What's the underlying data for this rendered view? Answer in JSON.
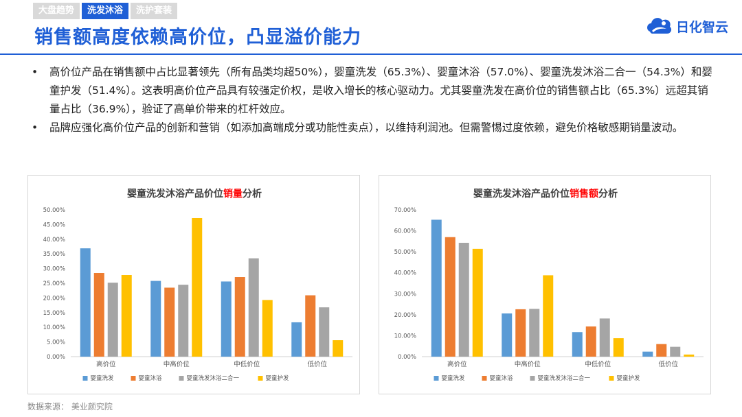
{
  "header": {
    "tabs": [
      "大盘趋势",
      "洗发沐浴",
      "洗护套装"
    ],
    "active_tab": 1,
    "title": "销售额高度依赖高价位，凸显溢价能力",
    "logo_text": "日化智云"
  },
  "bullets": [
    "高价位产品在销售额中占比显著领先（所有品类均超50%），婴童洗发（65.3%）、婴童沐浴（57.0%）、婴童洗发沐浴二合一（54.3%）和婴童护发（51.4%）。这表明高价位产品具有较强定价权，是收入增长的核心驱动力。尤其婴童洗发在高价位的销售额占比（65.3%）远超其销量占比（36.9%），验证了高单价带来的杠杆效应。",
    "品牌应强化高价位产品的创新和营销（如添加高端成分或功能性卖点），以维持利润池。但需警惕过度依赖，避免价格敏感期销量波动。"
  ],
  "source": "数据来源：  美业颜究院",
  "colors": {
    "brand": "#1f5fd6",
    "highlight": "#ff0000",
    "series": [
      "#5b9bd5",
      "#ed7d31",
      "#a5a5a5",
      "#ffc000"
    ]
  },
  "chart_data": [
    {
      "type": "bar",
      "title_prefix": "婴童洗发沐浴产品价位",
      "title_highlight": "销量",
      "title_suffix": "分析",
      "categories": [
        "高价位",
        "中高价位",
        "中低价位",
        "低价位"
      ],
      "series": [
        {
          "name": "婴童洗发",
          "values": [
            36.9,
            25.8,
            25.6,
            11.7
          ]
        },
        {
          "name": "婴童沐浴",
          "values": [
            28.5,
            23.5,
            27.1,
            20.9
          ]
        },
        {
          "name": "婴童洗发沐浴二合一",
          "values": [
            25.2,
            24.5,
            33.5,
            16.8
          ]
        },
        {
          "name": "婴童护发",
          "values": [
            27.8,
            47.2,
            19.3,
            5.6
          ]
        }
      ],
      "ylim": [
        0,
        50
      ],
      "yticks": [
        "0.00%",
        "5.00%",
        "10.00%",
        "15.00%",
        "20.00%",
        "25.00%",
        "30.00%",
        "35.00%",
        "40.00%",
        "45.00%",
        "50.00%"
      ],
      "grid": false,
      "legend": "bottom"
    },
    {
      "type": "bar",
      "title_prefix": "婴童洗发沐浴产品价位",
      "title_highlight": "销售额",
      "title_suffix": "分析",
      "categories": [
        "高价位",
        "中高价位",
        "中低价位",
        "低价位"
      ],
      "series": [
        {
          "name": "婴童洗发",
          "values": [
            65.3,
            20.6,
            11.7,
            2.4
          ]
        },
        {
          "name": "婴童沐浴",
          "values": [
            57.0,
            22.6,
            14.4,
            6.0
          ]
        },
        {
          "name": "婴童洗发沐浴二合一",
          "values": [
            54.3,
            22.8,
            18.2,
            4.7
          ]
        },
        {
          "name": "婴童护发",
          "values": [
            51.4,
            38.8,
            8.8,
            1.0
          ]
        }
      ],
      "ylim": [
        0,
        70
      ],
      "yticks": [
        "0.00%",
        "10.00%",
        "20.00%",
        "30.00%",
        "40.00%",
        "50.00%",
        "60.00%",
        "70.00%"
      ],
      "grid": false,
      "legend": "bottom"
    }
  ]
}
